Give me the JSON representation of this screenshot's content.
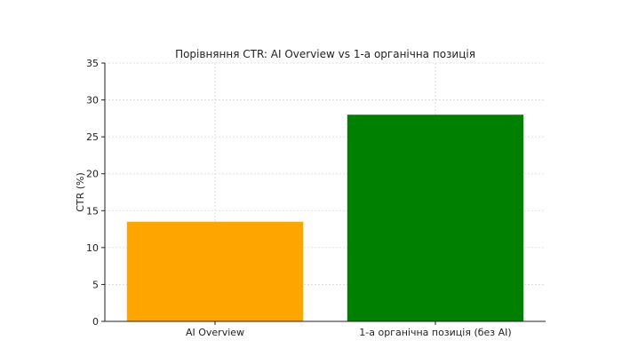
{
  "chart_data": {
    "type": "bar",
    "title": "Порівняння CTR: AI Overview vs 1-а органічна позиція",
    "xlabel": "",
    "ylabel": "CTR (%)",
    "categories": [
      "AI Overview",
      "1-а органічна позиція (без AI)"
    ],
    "values": [
      13.5,
      28
    ],
    "colors": [
      "#FFA500",
      "#008000"
    ],
    "ylim": [
      0,
      35
    ],
    "yticks": [
      0,
      5,
      10,
      15,
      20,
      25,
      30,
      35
    ],
    "grid": true
  }
}
